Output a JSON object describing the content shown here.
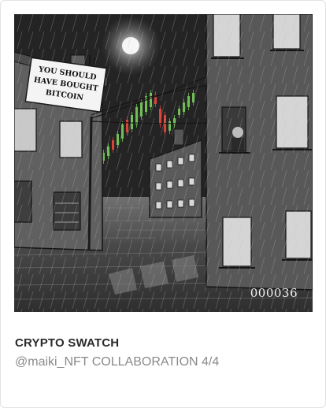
{
  "nft": {
    "sign_text_lines": [
      "YOU SHOULD",
      "HAVE BOUGHT",
      "BITCOIN"
    ],
    "serial_number": "000036",
    "title": "CRYPTO SWATCH",
    "subtitle": "@maiki_NFT COLLABORATION 4/4"
  },
  "colors": {
    "candle_up": "#6fbf55",
    "candle_down": "#d8443a"
  }
}
